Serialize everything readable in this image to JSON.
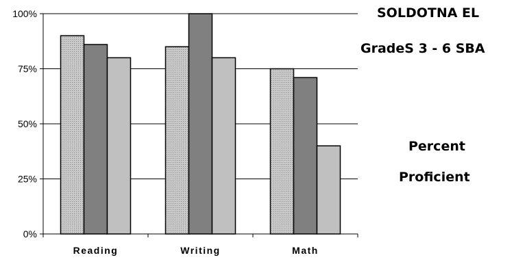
{
  "chart_data": {
    "type": "bar",
    "title": "SOLDOTNA EL",
    "subtitle": "GradeS 3 - 6 SBA",
    "ylabel_line1": "Percent",
    "ylabel_line2": "Proficient",
    "categories": [
      "Reading",
      "Writing",
      "Math"
    ],
    "series": [
      {
        "values": [
          90,
          85,
          75
        ],
        "color": "#bdbdbd",
        "pattern": "dotted"
      },
      {
        "values": [
          86,
          100,
          71
        ],
        "color": "#808080"
      },
      {
        "values": [
          80,
          80,
          40
        ],
        "color": "#c0c0c0"
      }
    ],
    "ylim": [
      0,
      100
    ],
    "yticks": [
      {
        "value": 0,
        "label": "0%"
      },
      {
        "value": 25,
        "label": "25%"
      },
      {
        "value": 50,
        "label": "50%"
      },
      {
        "value": 75,
        "label": "75%"
      },
      {
        "value": 100,
        "label": "100%"
      }
    ],
    "grid": true,
    "legend": "none"
  }
}
